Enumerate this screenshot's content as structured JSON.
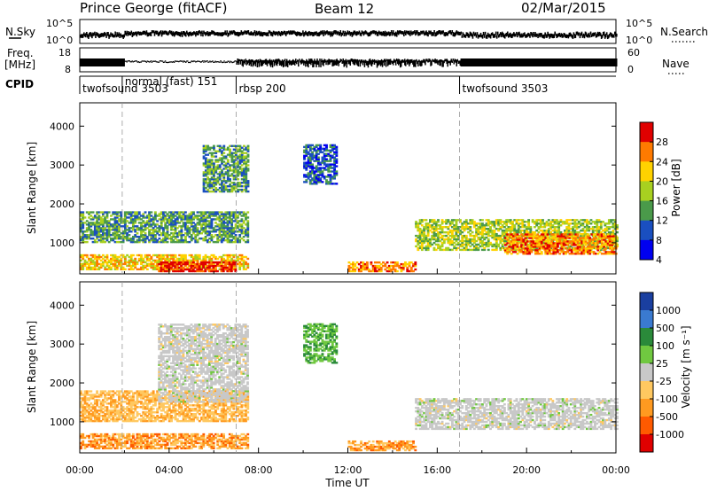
{
  "header": {
    "radar": "Prince George (fitACF)",
    "beam": "Beam 12",
    "date": "02/Mar/2015"
  },
  "summary": {
    "left_top_label": "N.Sky",
    "left_mid_label_1": "Freq.",
    "left_mid_label_2": "[MHz]",
    "left_bottom_label": "CPID",
    "right_top_label": "N.Search",
    "right_mid_label": "Nave",
    "nsky_ticks": [
      "10^5",
      "10^0"
    ],
    "nsearch_ticks": [
      "10^5",
      "10^0"
    ],
    "freq_ticks": [
      "18",
      "8"
    ],
    "nave_ticks": [
      "60",
      "0"
    ]
  },
  "cpid": [
    {
      "label": "twofsound 3503",
      "start_hour": 0.0
    },
    {
      "label": "normal (fast) 151",
      "start_hour": 1.9
    },
    {
      "label": "rbsp 200",
      "start_hour": 7.0
    },
    {
      "label": "twofsound 3503",
      "start_hour": 17.0
    }
  ],
  "chart_data": [
    {
      "type": "heatmap",
      "title": "",
      "xlabel": "Time UT",
      "ylabel": "Slant Range [km]",
      "xlim": [
        0,
        24
      ],
      "ylim": [
        200,
        4600
      ],
      "x_ticks": [
        "00:00",
        "04:00",
        "08:00",
        "12:00",
        "16:00",
        "20:00",
        "00:00"
      ],
      "y_ticks": [
        "1000",
        "2000",
        "3000",
        "4000"
      ],
      "y_tick_values": [
        1000,
        2000,
        3000,
        4000
      ],
      "colorbar": {
        "label": "Power [dB]",
        "ticks": [
          "28",
          "24",
          "20",
          "16",
          "12",
          "8",
          "4"
        ],
        "colors": [
          "#e00000",
          "#ff7a00",
          "#ffd200",
          "#a8d020",
          "#4a9a4a",
          "#1a4fc0",
          "#0000f0"
        ]
      },
      "features": [
        {
          "t0": 0.0,
          "t1": 7.5,
          "r0": 1000,
          "r1": 1800,
          "level": 12
        },
        {
          "t0": 0.0,
          "t1": 7.5,
          "r0": 300,
          "r1": 700,
          "level": 20
        },
        {
          "t0": 3.5,
          "t1": 7.0,
          "r0": 250,
          "r1": 500,
          "level": 28
        },
        {
          "t0": 5.5,
          "t1": 7.5,
          "r0": 2300,
          "r1": 3500,
          "level": 12
        },
        {
          "t0": 10.0,
          "t1": 11.5,
          "r0": 2500,
          "r1": 3500,
          "level": 8
        },
        {
          "t0": 12.0,
          "t1": 15.0,
          "r0": 250,
          "r1": 500,
          "level": 24
        },
        {
          "t0": 15.0,
          "t1": 24.0,
          "r0": 800,
          "r1": 1600,
          "level": 16
        },
        {
          "t0": 19.0,
          "t1": 24.0,
          "r0": 700,
          "r1": 1200,
          "level": 24
        }
      ]
    },
    {
      "type": "heatmap",
      "title": "",
      "xlabel": "Time UT",
      "ylabel": "Slant Range [km]",
      "xlim": [
        0,
        24
      ],
      "ylim": [
        200,
        4600
      ],
      "x_ticks": [
        "00:00",
        "04:00",
        "08:00",
        "12:00",
        "16:00",
        "20:00",
        "00:00"
      ],
      "y_ticks": [
        "1000",
        "2000",
        "3000",
        "4000"
      ],
      "y_tick_values": [
        1000,
        2000,
        3000,
        4000
      ],
      "colorbar": {
        "label": "Velocity [m s⁻¹]",
        "ticks": [
          "1000",
          "500",
          "100",
          "25",
          "-25",
          "-100",
          "-500",
          "-1000"
        ],
        "colors": [
          "#1a3fa0",
          "#3a7ad0",
          "#2a8a3a",
          "#70c840",
          "#c8c8c8",
          "#ffc860",
          "#ff9a20",
          "#ff5a00",
          "#e00000"
        ]
      },
      "features": [
        {
          "t0": 0.0,
          "t1": 7.5,
          "r0": 1000,
          "r1": 1800,
          "level": -100
        },
        {
          "t0": 0.0,
          "t1": 7.5,
          "r0": 300,
          "r1": 700,
          "level": -500
        },
        {
          "t0": 3.5,
          "t1": 7.5,
          "r0": 1500,
          "r1": 3500,
          "level": 0
        },
        {
          "t0": 10.0,
          "t1": 11.5,
          "r0": 2500,
          "r1": 3500,
          "level": 100
        },
        {
          "t0": 12.0,
          "t1": 15.0,
          "r0": 250,
          "r1": 500,
          "level": -500
        },
        {
          "t0": 15.0,
          "t1": 24.0,
          "r0": 800,
          "r1": 1600,
          "level": 0
        }
      ]
    }
  ]
}
